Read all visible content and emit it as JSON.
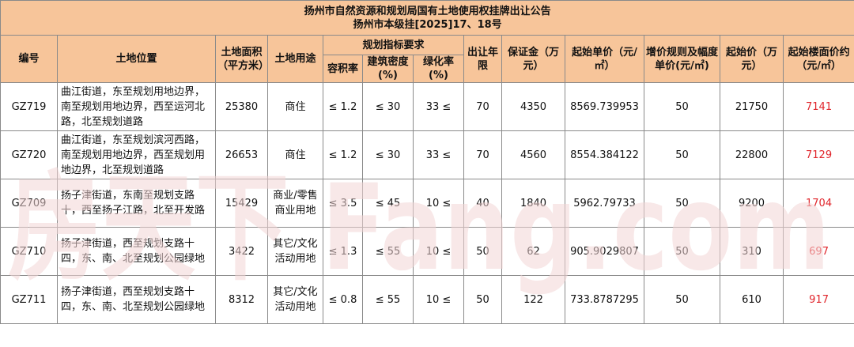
{
  "title": {
    "line1": "扬州市自然资源和规划局国有土地使用权挂牌出让公告",
    "line2": "扬州市本级挂[2025]17、18号"
  },
  "headers": {
    "id": "编号",
    "location": "土地位置",
    "area": "土地面积（平方米）",
    "use": "土地用途",
    "planning": "规划指标要求",
    "far": "容积率",
    "density": "建筑密度(%)",
    "green": "绿化率(%)",
    "term": "出让年限",
    "deposit": "保证金（万元）",
    "unit_price": "起始单价（元/㎡）",
    "increment": "增价规则及幅度单价(元/㎡)",
    "start_price": "起始价（万元）",
    "floor_price": "起始楼面价约（元/㎡）"
  },
  "rows": [
    {
      "id": "GZ719",
      "location": "曲江街道，东至规划用地边界，南至规划用地边界，西至运河北路，北至规划道路",
      "area": "25380",
      "use": "商住",
      "far": "≤ 1.2",
      "density": "≤ 30",
      "green": "33 ≤",
      "term": "70",
      "deposit": "4350",
      "unit_price": "8569.739953",
      "increment": "50",
      "start_price": "21750",
      "floor_price": "7141"
    },
    {
      "id": "GZ720",
      "location": "曲江街道，东至规划滨河西路，南至规划用地边界，西至规划用地边界，北至规划道路",
      "area": "26653",
      "use": "商住",
      "far": "≤ 1.2",
      "density": "≤ 30",
      "green": "33 ≤",
      "term": "70",
      "deposit": "4560",
      "unit_price": "8554.384122",
      "increment": "50",
      "start_price": "22800",
      "floor_price": "7129"
    },
    {
      "id": "GZ709",
      "location": "扬子津街道，东南至规划支路十，西至扬子江路，北至开发路",
      "area": "15429",
      "use": "商业/零售商业用地",
      "far": "≤ 3.5",
      "density": "≤ 45",
      "green": "10 ≤",
      "term": "40",
      "deposit": "1840",
      "unit_price": "5962.79733",
      "increment": "50",
      "start_price": "9200",
      "floor_price": "1704"
    },
    {
      "id": "GZ710",
      "location": "扬子津街道，西至规划支路十四，东、南、北至规划公园绿地",
      "area": "3422",
      "use": "其它/文化活动用地",
      "far": "≤ 1.3",
      "density": "≤ 55",
      "green": "10 ≤",
      "term": "50",
      "deposit": "62",
      "unit_price": "905.9029807",
      "increment": "50",
      "start_price": "310",
      "floor_price": "697"
    },
    {
      "id": "GZ711",
      "location": "扬子津街道，西至规划支路十四，东、南、北至规划公园绿地",
      "area": "8312",
      "use": "其它/文化活动用地",
      "far": "≤ 0.8",
      "density": "≤ 55",
      "green": "10 ≤",
      "term": "50",
      "deposit": "122",
      "unit_price": "733.8787295",
      "increment": "50",
      "start_price": "610",
      "floor_price": "917"
    }
  ],
  "watermark": "房天下 Fang.com",
  "colors": {
    "header_bg": "#f7c59a",
    "highlight": "#e0262c",
    "watermark": "#f3d6d6"
  }
}
